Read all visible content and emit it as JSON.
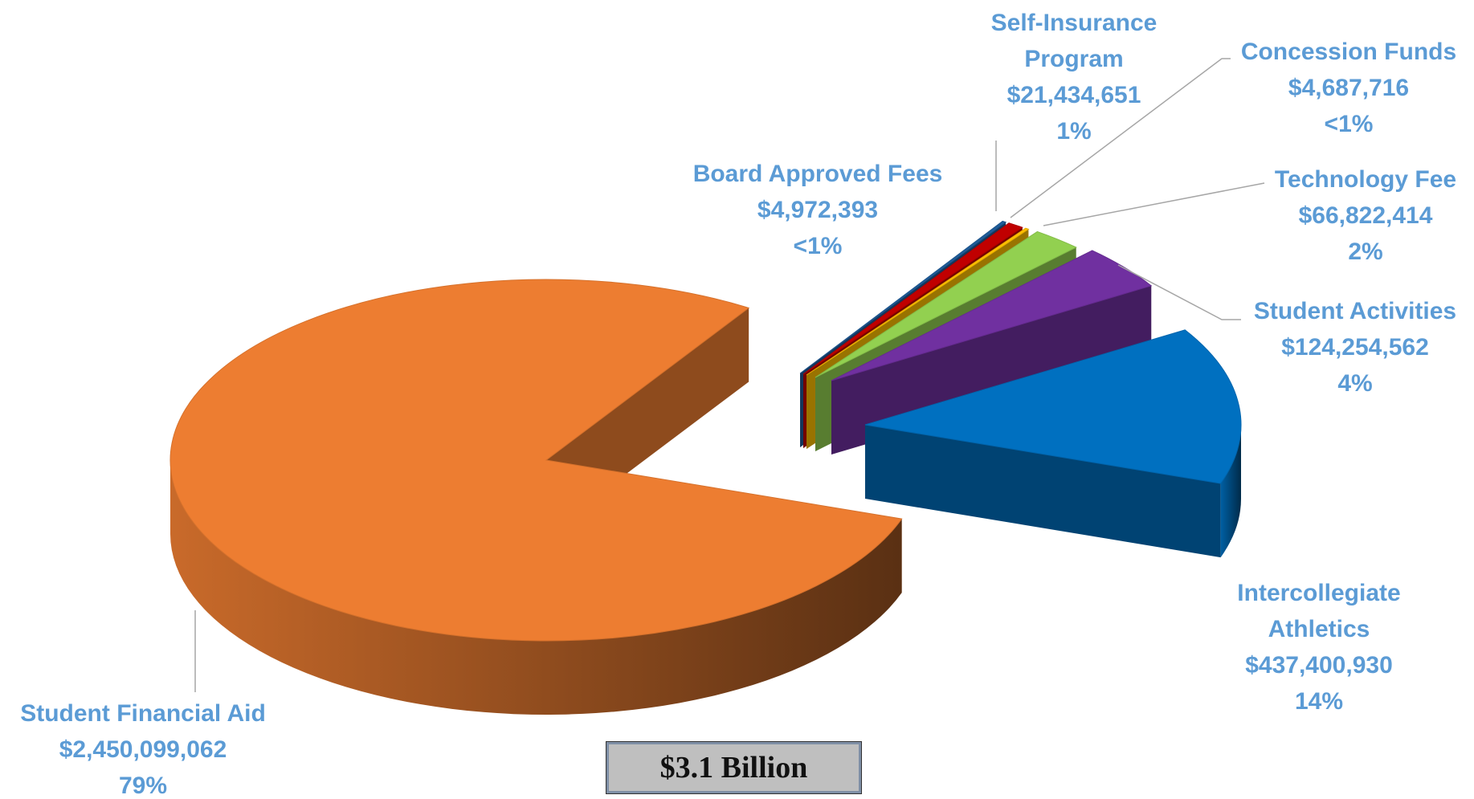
{
  "chart_data": {
    "type": "pie",
    "categories": [
      "Student Financial Aid",
      "Intercollegiate Athletics",
      "Student Activities",
      "Technology  Fee",
      "Concession Funds",
      "Self-Insurance Program",
      "Board Approved Fees"
    ],
    "values": [
      2450099062,
      437400930,
      124254562,
      66822414,
      4687716,
      21434651,
      4972393
    ],
    "value_labels": [
      "$2,450,099,062",
      "$437,400,930",
      "$124,254,562",
      "$66,822,414",
      "$4,687,716",
      "$21,434,651",
      "$4,972,393"
    ],
    "percent_labels": [
      "79%",
      "14%",
      "4%",
      "2%",
      "<1%",
      "1%",
      "<1%"
    ],
    "colors": [
      "#ed7d31",
      "#0070c0",
      "#7030a0",
      "#92d050",
      "#ffc000",
      "#c00000",
      "#1f5c99"
    ],
    "total_label": "$3.1 Billion"
  }
}
